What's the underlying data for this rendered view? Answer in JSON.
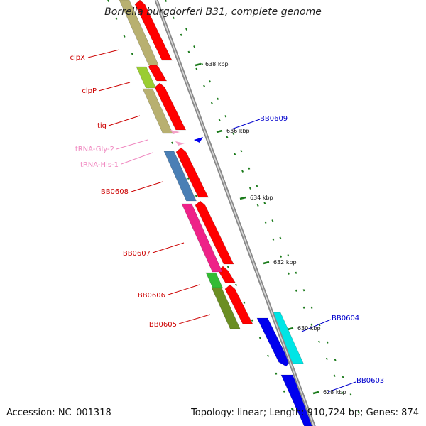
{
  "title": "Borrelia burgdorferi B31, complete genome",
  "footer": {
    "accession": "Accession: NC_001318",
    "summary": "Topology: linear; Length: 910,724 bp; Genes: 874"
  },
  "colors": {
    "cds": "#ff0000",
    "backbone": "#888888",
    "tick": "#1a7a1a",
    "label_red": "#cc0000",
    "label_blue": "#0000cc",
    "label_pink": "#f088c0"
  },
  "ruler": [
    "638 kbp",
    "636 kbp",
    "634 kbp",
    "632 kbp",
    "630 kbp",
    "628 kbp"
  ],
  "genes": [
    {
      "label": "clpX",
      "strand": "-",
      "color": "#ff0000",
      "cog_color": "#b8b070",
      "label_color": "#cc0000"
    },
    {
      "label": "clpP",
      "strand": "-",
      "color": "#ff0000",
      "cog_color": "#b8b070",
      "label_color": "#cc0000"
    },
    {
      "label": "tig",
      "strand": "-",
      "color": "#ff0000",
      "cog_color": "#b8b070",
      "label_color": "#cc0000"
    },
    {
      "label": "tRNA-Gly-2",
      "strand": "-",
      "color": "#f4a0c8",
      "label_color": "#f088c0"
    },
    {
      "label": "tRNA-His-1",
      "strand": "-",
      "color": "#f4a0c8",
      "label_color": "#f088c0"
    },
    {
      "label": "BB0608",
      "strand": "-",
      "color": "#ff0000",
      "cog_color": "#4a7fb5",
      "label_color": "#cc0000"
    },
    {
      "label": "BB0607",
      "strand": "-",
      "color": "#ff0000",
      "cog_color": "#ee2288",
      "label_color": "#cc0000"
    },
    {
      "label": "BB0606",
      "strand": "-",
      "color": "#ff0000",
      "cog_color": "#33bb33",
      "label_color": "#cc0000"
    },
    {
      "label": "BB0605",
      "strand": "-",
      "color": "#ff0000",
      "cog_color": "#6b8e23",
      "label_color": "#cc0000"
    },
    {
      "label": "BB0609",
      "strand": "+",
      "color": "#0000ee",
      "label_color": "#0000cc"
    },
    {
      "label": "BB0604",
      "strand": "+",
      "color": "#0000ee",
      "cog_color": "#00e5e5",
      "label_color": "#0000cc"
    },
    {
      "label": "BB0603",
      "strand": "+",
      "color": "#0000ee",
      "label_color": "#0000cc"
    }
  ]
}
